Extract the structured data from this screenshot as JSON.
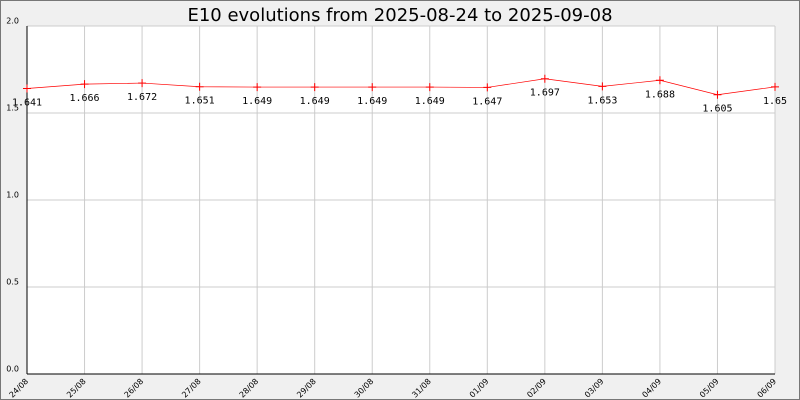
{
  "chart_data": {
    "type": "line",
    "title": "E10 evolutions from 2025-08-24 to 2025-09-08",
    "categories": [
      "24/08",
      "25/08",
      "26/08",
      "27/08",
      "28/08",
      "29/08",
      "30/08",
      "31/08",
      "01/09",
      "02/09",
      "03/09",
      "04/09",
      "05/09",
      "06/09"
    ],
    "values": [
      1.641,
      1.666,
      1.672,
      1.651,
      1.649,
      1.649,
      1.649,
      1.649,
      1.647,
      1.697,
      1.653,
      1.688,
      1.605,
      1.65
    ],
    "color": "#ff0000",
    "ylim": [
      0,
      2
    ],
    "yticks": [
      {
        "value": 0,
        "label": "0.0"
      },
      {
        "value": 0.5,
        "label": "0.5"
      },
      {
        "value": 1,
        "label": "1.0"
      },
      {
        "value": 1.5,
        "label": "1.5"
      },
      {
        "value": 2,
        "label": "2.0"
      }
    ],
    "grid": true
  }
}
